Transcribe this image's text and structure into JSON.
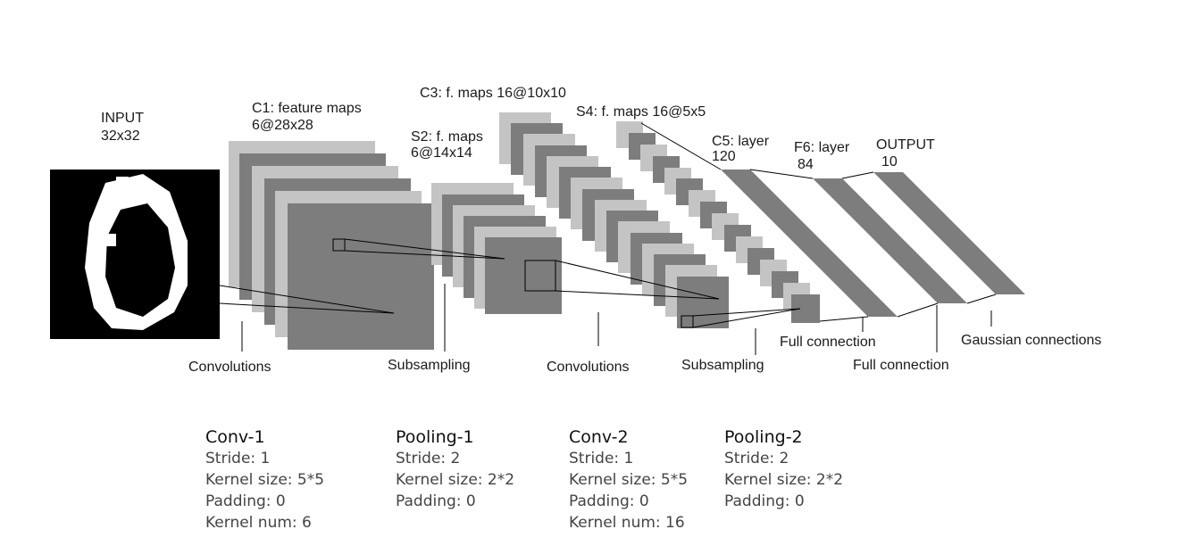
{
  "diagram": {
    "input": {
      "title": "INPUT",
      "size": "32x32"
    },
    "c1": {
      "title": "C1: feature maps",
      "size": "6@28x28"
    },
    "s2": {
      "title": "S2: f. maps",
      "size": "6@14x14"
    },
    "c3": {
      "title": "C3: f. maps 16@10x10"
    },
    "s4": {
      "title": "S4: f. maps 16@5x5"
    },
    "c5": {
      "title": "C5: layer",
      "size": "120"
    },
    "f6": {
      "title": "F6: layer",
      "size": "84"
    },
    "output": {
      "title": "OUTPUT",
      "size": "10"
    },
    "ops": [
      {
        "label": "Convolutions"
      },
      {
        "label": "Subsampling"
      },
      {
        "label": "Convolutions"
      },
      {
        "label": "Subsampling"
      },
      {
        "label": "Full connection"
      },
      {
        "label": "Full connection"
      },
      {
        "label": "Gaussian connections"
      }
    ]
  },
  "params": [
    {
      "title": "Conv-1",
      "lines": [
        "Stride: 1",
        "Kernel size: 5*5",
        "Padding: 0",
        "Kernel num: 6"
      ]
    },
    {
      "title": "Pooling-1",
      "lines": [
        "Stride: 2",
        "Kernel size: 2*2",
        "Padding: 0"
      ]
    },
    {
      "title": "Conv-2",
      "lines": [
        "Stride: 1",
        "Kernel size: 5*5",
        "Padding: 0",
        "Kernel num: 16"
      ]
    },
    {
      "title": "Pooling-2",
      "lines": [
        "Stride: 2",
        "Kernel size: 2*2",
        "Padding: 0"
      ]
    }
  ],
  "colors": {
    "map_light": "#c4c4c4",
    "map_dark": "#7d7d7d",
    "input_bg": "#000000",
    "digit": "#ffffff"
  }
}
